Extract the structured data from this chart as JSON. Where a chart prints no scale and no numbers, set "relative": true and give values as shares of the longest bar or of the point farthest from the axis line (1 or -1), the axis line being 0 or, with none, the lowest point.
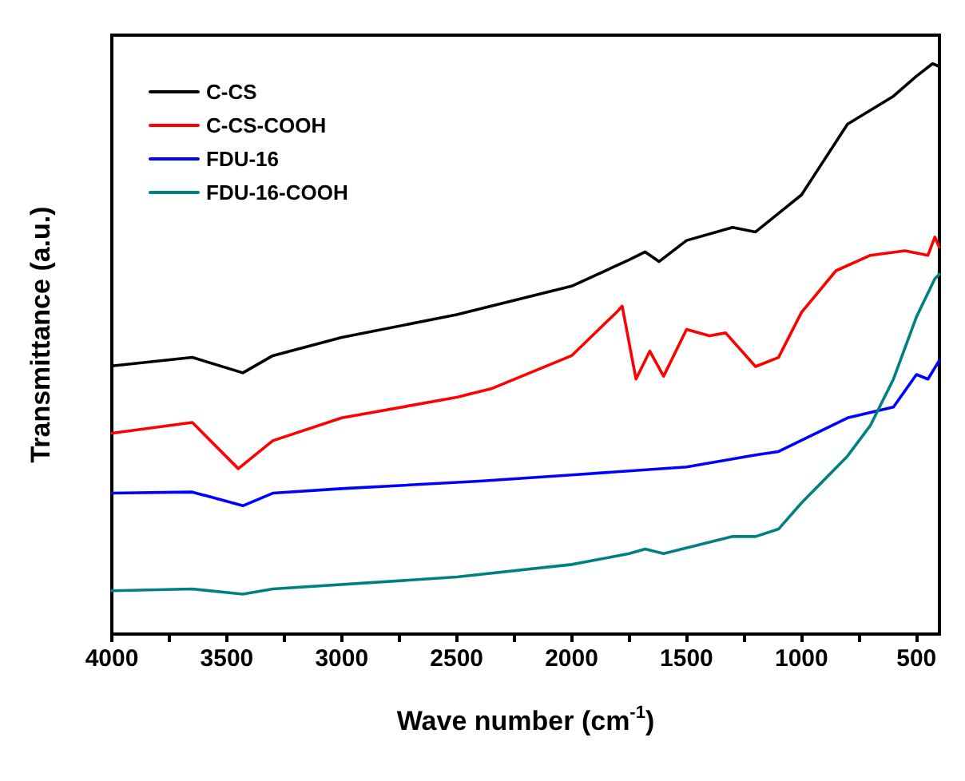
{
  "chart_data": {
    "type": "line",
    "relative": true,
    "xlabel": "Wave number (cm$^{-1}$)",
    "ylabel": "Transmittance (a.u.)",
    "xlim": [
      4000,
      400
    ],
    "xticks": [
      4000,
      {
        "value": 3750,
        "label": null
      },
      3500,
      {
        "value": 3250,
        "label": null
      },
      3000,
      {
        "value": 2750,
        "label": null
      },
      2500,
      {
        "value": 2250,
        "label": null
      },
      2000,
      {
        "value": 1750,
        "label": null
      },
      1500,
      {
        "value": 1250,
        "label": null
      },
      1000,
      {
        "value": 750,
        "label": null
      },
      500
    ],
    "legend": "top left",
    "marker": "none",
    "line_style": "solid",
    "grid": false,
    "series": [
      {
        "name": "C-CS",
        "color": "#000000",
        "x": [
          4000,
          3650,
          3430,
          3300,
          3000,
          2500,
          2000,
          1750,
          1680,
          1620,
          1500,
          1300,
          1200,
          1000,
          800,
          600,
          500,
          430,
          400
        ],
        "values": [
          0.47,
          0.485,
          0.458,
          0.488,
          0.52,
          0.56,
          0.61,
          0.656,
          0.67,
          0.653,
          0.69,
          0.713,
          0.705,
          0.77,
          0.894,
          0.943,
          0.978,
          1.0,
          0.995
        ]
      },
      {
        "name": "C-CS-COOH",
        "color": "#ff0000",
        "x": [
          4000,
          3650,
          3450,
          3300,
          3000,
          2500,
          2350,
          2000,
          1800,
          1780,
          1720,
          1660,
          1600,
          1500,
          1400,
          1330,
          1200,
          1100,
          1000,
          850,
          700,
          550,
          450,
          420,
          400
        ],
        "values": [
          0.352,
          0.371,
          0.29,
          0.339,
          0.379,
          0.415,
          0.43,
          0.488,
          0.566,
          0.575,
          0.447,
          0.496,
          0.452,
          0.534,
          0.523,
          0.528,
          0.469,
          0.485,
          0.564,
          0.637,
          0.664,
          0.672,
          0.664,
          0.696,
          0.678
        ]
      },
      {
        "name": "FDU-16",
        "color": "#0000ff",
        "x": [
          4000,
          3650,
          3430,
          3300,
          3000,
          2400,
          2000,
          1500,
          1200,
          1100,
          800,
          600,
          500,
          450,
          400
        ],
        "values": [
          0.247,
          0.249,
          0.225,
          0.247,
          0.255,
          0.268,
          0.279,
          0.293,
          0.314,
          0.32,
          0.379,
          0.398,
          0.455,
          0.447,
          0.48
        ]
      },
      {
        "name": "FDU-16-COOH",
        "color": "#008080",
        "x": [
          4000,
          3650,
          3430,
          3300,
          2500,
          2000,
          1750,
          1680,
          1600,
          1300,
          1200,
          1100,
          1000,
          800,
          700,
          600,
          500,
          420,
          400
        ],
        "values": [
          0.076,
          0.079,
          0.07,
          0.079,
          0.1,
          0.122,
          0.141,
          0.149,
          0.141,
          0.171,
          0.171,
          0.184,
          0.23,
          0.312,
          0.366,
          0.447,
          0.556,
          0.623,
          0.631
        ]
      }
    ]
  }
}
